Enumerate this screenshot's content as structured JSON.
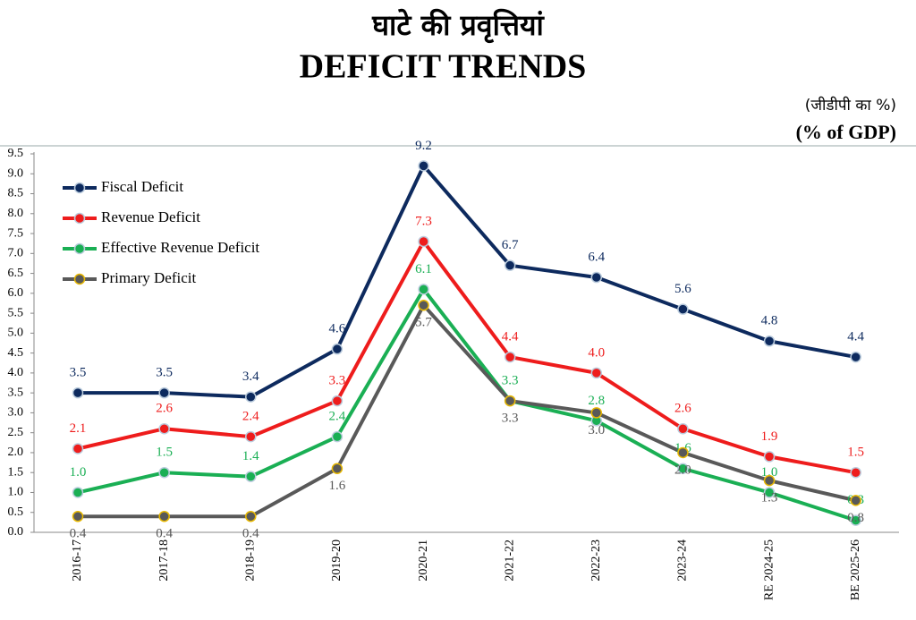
{
  "chart_data": {
    "type": "line",
    "title": "घाटे की प्रवृत्तियां",
    "subtitle": "DEFICIT TRENDS",
    "unit_hindi": "(जीडीपी का %)",
    "unit": "(% of GDP)",
    "categories": [
      "2016-17",
      "2017-18",
      "2018-19",
      "2019-20",
      "2020-21",
      "2021-22",
      "2022-23",
      "2023-24",
      "RE 2024-25",
      "BE 2025-26"
    ],
    "series": [
      {
        "name": "Fiscal Deficit",
        "color": "#0d2a5e",
        "values": [
          3.5,
          3.5,
          3.4,
          4.6,
          9.2,
          6.7,
          6.4,
          5.6,
          4.8,
          4.4
        ],
        "value_labels": [
          "3.5",
          "3.5",
          "3.4",
          "4.6",
          "9.2",
          "6.7",
          "6.4",
          "5.6",
          "4.8",
          "4.4"
        ]
      },
      {
        "name": "Revenue Deficit",
        "color": "#ee1c1c",
        "values": [
          2.1,
          2.6,
          2.4,
          3.3,
          7.3,
          4.4,
          4.0,
          2.6,
          1.9,
          1.5
        ],
        "value_labels": [
          "2.1",
          "2.6",
          "2.4",
          "3.3",
          "7.3",
          "4.4",
          "4.0",
          "2.6",
          "1.9",
          "1.5"
        ]
      },
      {
        "name": "Effective Revenue Deficit",
        "color": "#1aaf54",
        "values": [
          1.0,
          1.5,
          1.4,
          2.4,
          6.1,
          3.3,
          2.8,
          1.6,
          1.0,
          0.3
        ],
        "value_labels": [
          "1.0",
          "1.5",
          "1.4",
          "2.4",
          "6.1",
          "3.3",
          "2.8",
          "1.6",
          "1.0",
          "0.3"
        ]
      },
      {
        "name": "Primary Deficit",
        "color": "#595959",
        "values": [
          0.4,
          0.4,
          0.4,
          1.6,
          5.7,
          3.3,
          3.0,
          2.0,
          1.3,
          0.8
        ],
        "value_labels": [
          "0.4",
          "0.4",
          "0.4",
          "1.6",
          "5.7",
          "3.3",
          "3.0",
          "2.0",
          "1.3",
          "0.8"
        ]
      }
    ],
    "ylim": [
      0,
      9.5
    ],
    "yticks": [
      {
        "value": 0,
        "label": "0.0"
      },
      0.5,
      {
        "value": 1,
        "label": "1.0"
      },
      1.5,
      {
        "value": 2,
        "label": "2.0"
      },
      2.5,
      {
        "value": 3,
        "label": "3.0"
      },
      3.5,
      {
        "value": 4,
        "label": "4.0"
      },
      4.5,
      {
        "value": 5,
        "label": "5.0"
      },
      5.5,
      {
        "value": 6,
        "label": "6.0"
      },
      6.5,
      {
        "value": 7,
        "label": "7.0"
      },
      7.5,
      {
        "value": 8,
        "label": "8.0"
      },
      8.5,
      {
        "value": 9,
        "label": "9.0"
      },
      9.5
    ],
    "legend": "upper left"
  }
}
